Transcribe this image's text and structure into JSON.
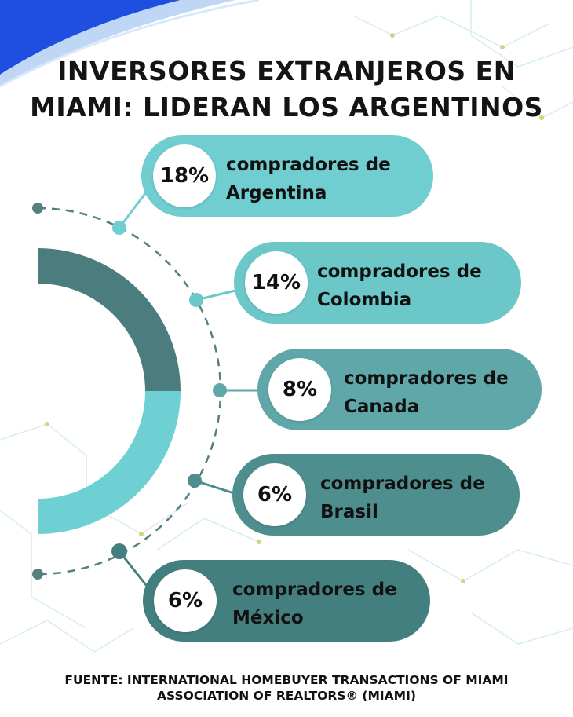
{
  "title": {
    "line1": "INVERSORES EXTRANJEROS EN",
    "line2": "MIAMI: LIDERAN LOS ARGENTINOS"
  },
  "items": [
    {
      "percent": "18%",
      "line1": "compradores de",
      "line2": "Argentina",
      "color": "#70CDD0"
    },
    {
      "percent": "14%",
      "line1": "compradores de",
      "line2": "Colombia",
      "color": "#6CC7C9"
    },
    {
      "percent": "8%",
      "line1": "compradores de",
      "line2": "Canada",
      "color": "#5FA7A8"
    },
    {
      "percent": "6%",
      "line1": "compradores de",
      "line2": "Brasil",
      "color": "#4E8E8E"
    },
    {
      "percent": "6%",
      "line1": "compradores de",
      "line2": "México",
      "color": "#447F7F"
    }
  ],
  "source": {
    "line1": "FUENTE:  INTERNATIONAL HOMEBUYER TRANSACTIONS OF MIAMI",
    "line2": "ASSOCIATION OF REALTORS® (MIAMI)"
  },
  "colors": {
    "accent_blue": "#1E4FE0",
    "donut_dark": "#4C7D7E",
    "donut_light": "#6FD0D3",
    "connector": "#557F80",
    "background": "#FFFFFF"
  }
}
